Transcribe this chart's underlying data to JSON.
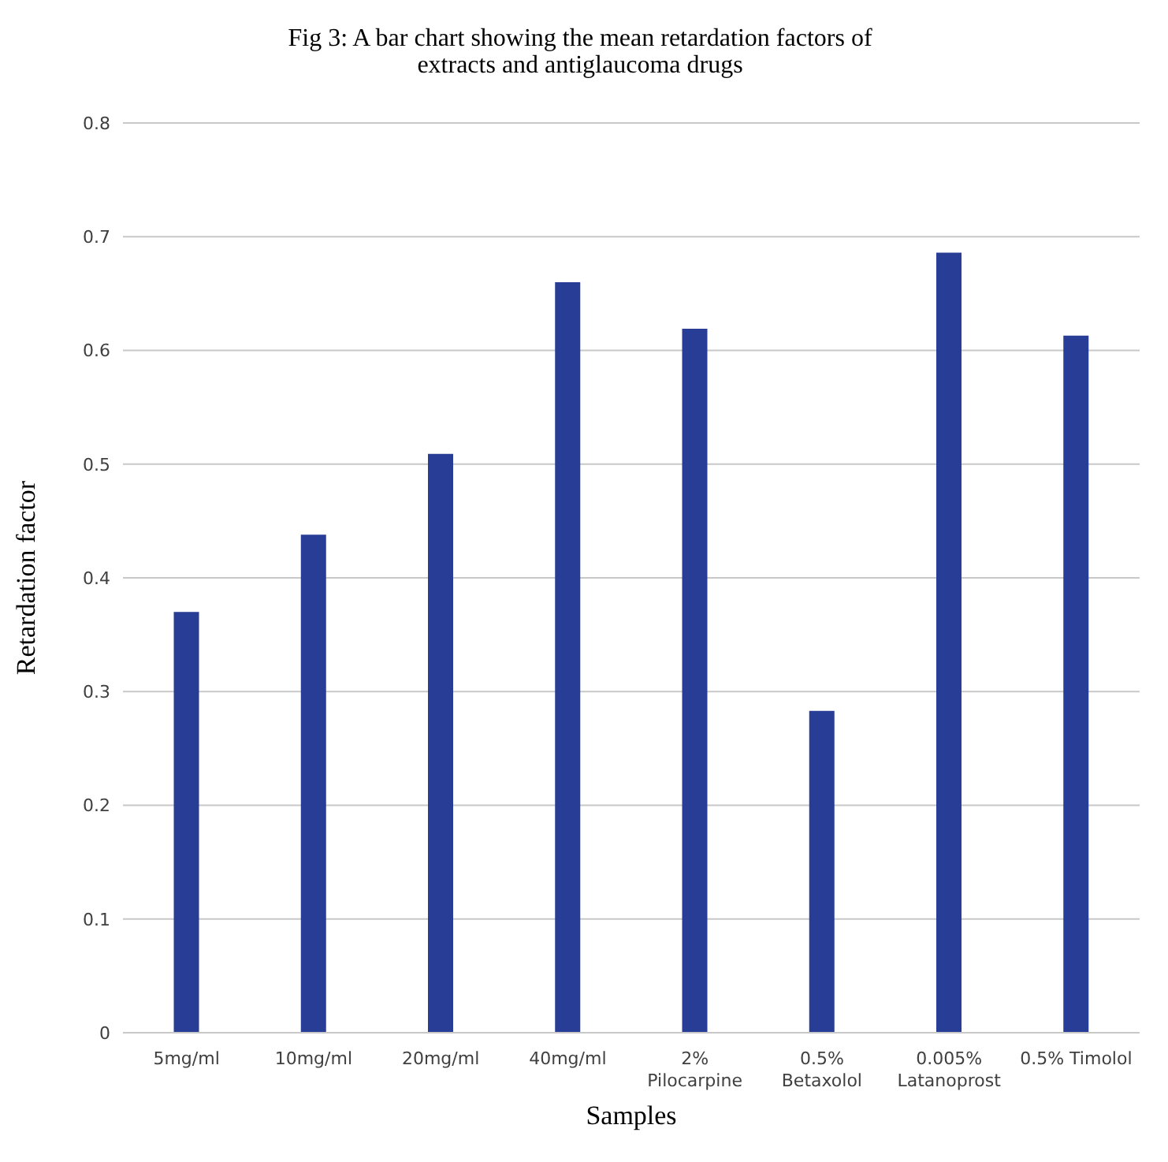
{
  "chart_data": {
    "type": "bar",
    "title": "Fig 3: A bar chart showing the mean retardation factors of extracts and antiglaucoma drugs",
    "xlabel": "Samples",
    "ylabel": "Retardation factor",
    "categories": [
      "5mg/ml",
      "10mg/ml",
      "20mg/ml",
      "40mg/ml",
      "2% Pilocarpine",
      "0.5% Betaxolol",
      "0.005% Latanoprost",
      "0.5% Timolol"
    ],
    "values": [
      0.37,
      0.438,
      0.509,
      0.66,
      0.619,
      0.283,
      0.686,
      0.613
    ],
    "color": "#283d96",
    "ylim": [
      0,
      0.8
    ],
    "yticks": [
      0,
      0.1,
      0.2,
      0.3,
      0.4,
      0.5,
      0.6,
      0.7,
      0.8
    ],
    "grid": "y"
  }
}
